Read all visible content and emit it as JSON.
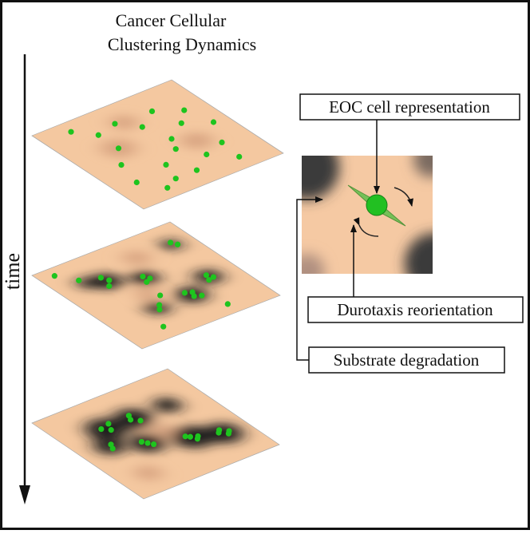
{
  "title": {
    "lines": [
      "Cancer Cellular",
      "Clustering Dynamics"
    ]
  },
  "axis_label": "time",
  "callouts": {
    "cell": "EOC cell representation",
    "durotaxis": "Durotaxis reorientation",
    "degradation": "Substrate degradation"
  }
}
